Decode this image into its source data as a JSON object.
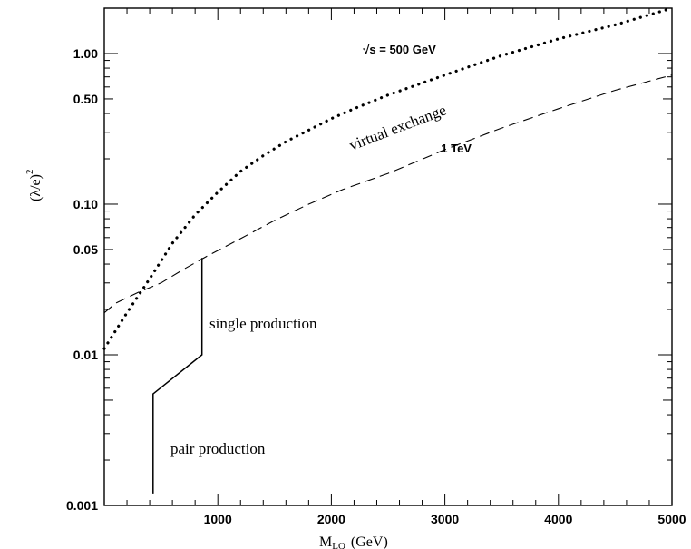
{
  "chart_data": {
    "type": "line",
    "title": "",
    "xlabel": "M",
    "xlabel_sub": "LQ",
    "xlabel_units": "(GeV)",
    "ylabel": "(λ/e)",
    "ylabel_sup": "2",
    "xlim": [
      0,
      5000
    ],
    "ylim": [
      0.001,
      2.0
    ],
    "y_scale": "log",
    "grid": false,
    "x_ticks": [
      {
        "value": 1000,
        "label": "1000"
      },
      {
        "value": 2000,
        "label": "2000"
      },
      {
        "value": 3000,
        "label": "3000"
      },
      {
        "value": 4000,
        "label": "4000"
      },
      {
        "value": 5000,
        "label": "5000"
      }
    ],
    "y_ticks": [
      {
        "value": 0.001,
        "label": "0.001"
      },
      {
        "value": 0.01,
        "label": "0.01"
      },
      {
        "value": 0.05,
        "label": "0.05"
      },
      {
        "value": 0.1,
        "label": "0.10"
      },
      {
        "value": 0.5,
        "label": "0.50"
      },
      {
        "value": 1.0,
        "label": "1.00"
      }
    ],
    "series": [
      {
        "style": "dotted",
        "x": [
          0,
          200,
          400,
          600,
          800,
          1000,
          1200,
          1400,
          1600,
          1800,
          2000,
          2200,
          2500,
          3000,
          3500,
          4000,
          4500,
          5000
        ],
        "y": [
          0.011,
          0.019,
          0.032,
          0.055,
          0.085,
          0.12,
          0.165,
          0.21,
          0.26,
          0.31,
          0.37,
          0.43,
          0.53,
          0.72,
          0.97,
          1.25,
          1.55,
          2.0
        ]
      },
      {
        "style": "dashed",
        "x": [
          0,
          100,
          300,
          500,
          700,
          900,
          1200,
          1500,
          1800,
          2100,
          2500,
          3000,
          3500,
          4000,
          4500,
          5000
        ],
        "y": [
          0.019,
          0.022,
          0.026,
          0.03,
          0.037,
          0.045,
          0.059,
          0.078,
          0.1,
          0.125,
          0.16,
          0.23,
          0.32,
          0.43,
          0.57,
          0.72
        ]
      },
      {
        "style": "solid",
        "x": [
          430,
          430,
          430,
          860,
          860
        ],
        "y": [
          0.0012,
          0.0055,
          0.0055,
          0.01,
          0.044
        ]
      }
    ],
    "annotations": [
      {
        "text": "√s = 500 GeV",
        "x": 2600,
        "y": 1.0
      },
      {
        "text": "virtual exchange",
        "x": 2600,
        "y": 0.3,
        "rotation": -21
      },
      {
        "text": "1 TeV",
        "x": 3100,
        "y": 0.22
      },
      {
        "text": "single production",
        "x": 1400,
        "y": 0.015
      },
      {
        "text": "pair production",
        "x": 1000,
        "y": 0.0022
      }
    ]
  }
}
